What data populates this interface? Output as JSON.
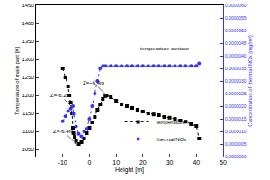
{
  "chart_data": {
    "type": "line",
    "xlabel": "Height [m]",
    "ylabel": "Temperature of main part [K]",
    "y2label": "Concentration of thermal NOx [mg/m³]",
    "xlim": [
      -20,
      50
    ],
    "xticks": [
      -10,
      0,
      10,
      20,
      30,
      40,
      50
    ],
    "ylim": [
      1030,
      1450
    ],
    "yticks": [
      1050,
      1100,
      1150,
      1200,
      1250,
      1300,
      1350,
      1400,
      1450
    ],
    "y2lim": [
      0,
      6e-06
    ],
    "y2ticks": [
      {
        "value": 0,
        "label": "0.0000000"
      },
      {
        "value": 5e-07,
        "label": "0.0000005"
      },
      {
        "value": 1e-06,
        "label": "0.0000010"
      },
      {
        "value": 1.5e-06,
        "label": "0.0000015"
      },
      {
        "value": 2e-06,
        "label": "0.0000020"
      },
      {
        "value": 2.5e-06,
        "label": "0.0000025"
      },
      {
        "value": 3e-06,
        "label": "0.0000030"
      },
      {
        "value": 3.5e-06,
        "label": "0.0000035"
      },
      {
        "value": 4e-06,
        "label": "0.0000040"
      },
      {
        "value": 4.5e-06,
        "label": "0.0000045"
      },
      {
        "value": 5e-06,
        "label": "0.0000050"
      },
      {
        "value": 5.5e-06,
        "label": "0.0000055"
      },
      {
        "value": 6e-06,
        "label": "0.0000060"
      }
    ],
    "legend": "bottom",
    "series": [
      {
        "name": "temperature",
        "color": "#000000",
        "marker": "square",
        "line_style": "dot",
        "x": [
          -10,
          -9,
          -8,
          -7.5,
          -7,
          -6.5,
          -6.2,
          -6,
          -5.5,
          -5,
          -4,
          -3,
          -2,
          -1,
          0,
          1,
          2,
          3,
          4,
          5,
          6,
          6.4,
          8,
          10,
          12,
          14,
          16,
          18,
          20,
          22,
          24,
          26,
          28,
          30,
          32,
          34,
          36,
          38,
          40,
          41
        ],
        "values": [
          1275,
          1250,
          1225,
          1200,
          1180,
          1150,
          1110,
          1095,
          1085,
          1075,
          1065,
          1070,
          1080,
          1095,
          1110,
          1125,
          1140,
          1160,
          1175,
          1190,
          1198,
          1200,
          1195,
          1185,
          1175,
          1170,
          1165,
          1160,
          1155,
          1150,
          1147,
          1145,
          1140,
          1138,
          1135,
          1130,
          1127,
          1120,
          1115,
          1080
        ]
      },
      {
        "name": "thermal NOx",
        "color": "#3333ff",
        "marker": "circle",
        "line_style": "dot",
        "axis": "y2",
        "x": [
          -10,
          -9,
          -8,
          -7,
          -6.2,
          -6,
          -5,
          -4,
          -3,
          -2,
          -1,
          0,
          1,
          2,
          3,
          4,
          5,
          6,
          8,
          10,
          12,
          14,
          16,
          18,
          20,
          22,
          24,
          26,
          28,
          30,
          32,
          34,
          36,
          38,
          40,
          41
        ],
        "values": [
          1.4e-06,
          1.6e-06,
          1.8e-06,
          1.9e-06,
          2e-06,
          1.7e-06,
          1.2e-06,
          9e-07,
          8e-07,
          1e-06,
          1.1e-06,
          1.5e-06,
          2e-06,
          2.5e-06,
          3e-06,
          3.5e-06,
          3.6e-06,
          3.6e-06,
          3.6e-06,
          3.6e-06,
          3.6e-06,
          3.6e-06,
          3.6e-06,
          3.6e-06,
          3.6e-06,
          3.6e-06,
          3.6e-06,
          3.6e-06,
          3.6e-06,
          3.6e-06,
          3.6e-06,
          3.6e-06,
          3.6e-06,
          3.6e-06,
          3.6e-06,
          3.7e-06
        ]
      }
    ],
    "annotations": [
      {
        "text": "Z=-6.2m",
        "x": -6.2,
        "y": 1165,
        "arrow": true
      },
      {
        "text": "Z=-6.4m",
        "x": -5,
        "y": 1065,
        "arrow": true
      },
      {
        "text": "Z=~6.4m",
        "x": 6.4,
        "y": 1200,
        "arrow": true
      },
      {
        "text": "temperature contour",
        "x": 28,
        "y": 1330,
        "arrow": false
      }
    ]
  }
}
